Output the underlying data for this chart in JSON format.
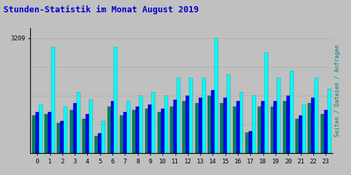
{
  "title": "Stunden-Statistik im Monat August 2019",
  "title_color": "#0000CC",
  "title_fontsize": 9,
  "ylabel_right": "Seiten / Dateien / Anfragen",
  "ylabel_right_color": "#008080",
  "background_color": "#C0C0C0",
  "plot_bg_color": "#C0C0C0",
  "max_value": 3209,
  "ymax": 3500,
  "hours": [
    0,
    1,
    2,
    3,
    4,
    5,
    6,
    7,
    8,
    9,
    10,
    11,
    12,
    13,
    14,
    15,
    16,
    17,
    18,
    19,
    20,
    21,
    22,
    23
  ],
  "anfragen": [
    1050,
    1100,
    850,
    1200,
    950,
    480,
    1300,
    1050,
    1200,
    1250,
    1150,
    1300,
    1450,
    1400,
    1600,
    1400,
    1300,
    580,
    1300,
    1300,
    1450,
    950,
    1400,
    1100
  ],
  "dateien": [
    1150,
    1150,
    900,
    1400,
    1100,
    550,
    1450,
    1150,
    1300,
    1350,
    1250,
    1500,
    1600,
    1550,
    1750,
    1550,
    1450,
    620,
    1450,
    1450,
    1600,
    1050,
    1550,
    1200
  ],
  "seiten": [
    1350,
    2950,
    1300,
    1700,
    1500,
    900,
    2950,
    1450,
    1600,
    1700,
    1600,
    2100,
    2100,
    2100,
    3209,
    2200,
    1700,
    1600,
    2800,
    2100,
    2300,
    1350,
    2100,
    1800
  ],
  "green_color": "#008060",
  "blue_color": "#0000FF",
  "cyan_color": "#00FFFF",
  "bar_width": 0.27,
  "grid_color": "#AAAAAA",
  "ytick_values": [
    3209
  ],
  "grid_lines": [
    800,
    1600,
    2400,
    3200
  ]
}
